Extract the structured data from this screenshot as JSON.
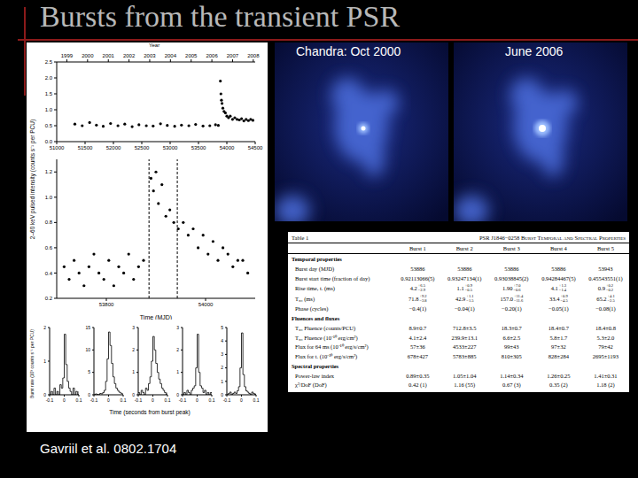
{
  "title": "Bursts from the transient PSR",
  "images": [
    {
      "label": "Chandra: Oct 2000"
    },
    {
      "label": "June 2006"
    }
  ],
  "citation": "Gavriil et al. 0802.1704",
  "chart_data": [
    {
      "type": "scatter",
      "marker": "circle",
      "color": "#000000",
      "y_label": "2–60 keV pulsed intensity (counts s⁻¹ per PCU)",
      "top_axis": {
        "label": "Year",
        "ticks": [
          {
            "value": 51179,
            "label": "1999"
          },
          {
            "value": 51544,
            "label": "2000"
          },
          {
            "value": 51910,
            "label": "2001"
          },
          {
            "value": 52275,
            "label": "2002"
          },
          {
            "value": 52640,
            "label": "2003"
          },
          {
            "value": 53005,
            "label": "2004"
          },
          {
            "value": 53371,
            "label": "2005"
          },
          {
            "value": 53736,
            "label": "2006"
          },
          {
            "value": 54101,
            "label": "2007"
          },
          {
            "value": 54466,
            "label": "2008"
          }
        ]
      },
      "x": [
        51320,
        51450,
        51580,
        51700,
        51820,
        51950,
        52080,
        52200,
        52330,
        52450,
        52580,
        52700,
        52830,
        52950,
        53080,
        53200,
        53330,
        53450,
        53580,
        53700,
        53800,
        53850,
        53886,
        53895,
        53905,
        53915,
        53930,
        53950,
        53975,
        54000,
        54030,
        54060,
        54100,
        54140,
        54180,
        54220,
        54260,
        54300,
        54340,
        54380,
        54420,
        54460
      ],
      "values": [
        0.55,
        0.5,
        0.6,
        0.52,
        0.48,
        0.57,
        0.5,
        0.55,
        0.47,
        0.53,
        0.5,
        0.49,
        0.56,
        0.51,
        0.48,
        0.52,
        0.5,
        0.54,
        0.49,
        0.5,
        0.53,
        0.51,
        1.9,
        1.5,
        1.3,
        1.2,
        1.05,
        0.95,
        0.9,
        0.8,
        0.75,
        0.8,
        0.7,
        0.75,
        0.7,
        0.68,
        0.72,
        0.65,
        0.7,
        0.66,
        0.7,
        0.67
      ],
      "xlim": [
        51000,
        54500
      ],
      "xticks": [
        51000,
        51500,
        52000,
        52500,
        53000,
        53500,
        54000,
        54500
      ],
      "ylim": [
        0,
        2.5
      ],
      "yticks": [
        {
          "value": 0,
          "label": "0.0"
        },
        {
          "value": 0.5,
          "label": "0.5"
        },
        {
          "value": 1,
          "label": "1.0"
        },
        {
          "value": 1.5,
          "label": "1.5"
        },
        {
          "value": 2,
          "label": "2.0"
        },
        {
          "value": 2.5,
          "label": "2.5"
        }
      ]
    },
    {
      "type": "scatter",
      "marker": "circle",
      "color": "#000000",
      "x_label": "Time (MJD)",
      "reference_lines": [
        53886,
        53943
      ],
      "x": [
        53715,
        53725,
        53735,
        53745,
        53755,
        53765,
        53775,
        53785,
        53795,
        53805,
        53815,
        53825,
        53835,
        53845,
        53855,
        53865,
        53875,
        53890,
        53895,
        53900,
        53905,
        53912,
        53920,
        53928,
        53936,
        53945,
        53955,
        53965,
        53975,
        53985,
        53995,
        54005,
        54015,
        54025,
        54035,
        54045,
        54055,
        54065,
        54075,
        54085
      ],
      "values": [
        0.45,
        0.35,
        0.5,
        0.4,
        0.3,
        0.45,
        0.55,
        0.4,
        0.35,
        0.5,
        0.3,
        0.45,
        0.4,
        0.55,
        0.35,
        0.45,
        0.5,
        1.15,
        1.05,
        1.2,
        0.95,
        1.1,
        0.85,
        0.9,
        0.8,
        0.75,
        0.8,
        0.7,
        0.75,
        0.6,
        0.7,
        0.55,
        0.65,
        0.5,
        0.6,
        0.55,
        0.45,
        0.5,
        0.5,
        0.4
      ],
      "xlim": [
        53700,
        54100
      ],
      "xticks": [
        53800,
        54000
      ],
      "ylim": [
        0.2,
        1.3
      ],
      "yticks": [
        0.2,
        0.4,
        0.6,
        0.8,
        {
          "value": 1,
          "label": "1.0"
        },
        1.2
      ]
    },
    {
      "type": "line",
      "line_style": "step",
      "color": "#000000",
      "x_label": "Time (seconds from burst peak)",
      "y_label": "Burst rate (10³ counts s⁻¹ per PCU)",
      "x": [
        -0.1,
        -0.09,
        -0.08,
        -0.07,
        -0.06,
        -0.05,
        -0.04,
        -0.03,
        -0.02,
        -0.01,
        0,
        0.01,
        0.02,
        0.03,
        0.04,
        0.05,
        0.06,
        0.07,
        0.08,
        0.09,
        0.1
      ],
      "xlim": [
        -0.1,
        0.1
      ],
      "xticks": [
        -0.1,
        0,
        0.1
      ],
      "panels": [
        {
          "values": [
            0,
            0.1,
            0,
            0.2,
            0,
            0.1,
            0,
            0.3,
            0.2,
            0.5,
            1.8,
            0.9,
            0.4,
            0.2,
            0.1,
            0,
            0.2,
            0,
            0.1,
            0,
            0.1
          ],
          "ylim": [
            0,
            2
          ],
          "yticks": [
            0,
            1,
            2
          ]
        },
        {
          "values": [
            0,
            0.2,
            0.1,
            0,
            0.3,
            0.2,
            0.5,
            1,
            3,
            8,
            14,
            11,
            7,
            4,
            2.5,
            1.5,
            1,
            0.6,
            0.4,
            0.2,
            0.1
          ],
          "ylim": [
            0,
            15
          ],
          "yticks": [
            0,
            5,
            10,
            15
          ]
        },
        {
          "values": [
            0.1,
            0,
            0.2,
            0.1,
            0,
            0.3,
            0.2,
            0.5,
            0.8,
            1.5,
            2.6,
            2,
            1.4,
            1,
            0.7,
            0.5,
            0.3,
            0.2,
            0.1,
            0,
            0.1
          ],
          "ylim": [
            0,
            3
          ],
          "yticks": [
            0,
            1,
            2,
            3
          ]
        },
        {
          "values": [
            0,
            0.1,
            0,
            0.2,
            0.1,
            0,
            0.2,
            0.3,
            0.4,
            1.2,
            2.7,
            1,
            0.4,
            0.3,
            0.1,
            0.2,
            0,
            0.1,
            0,
            0.1,
            0
          ],
          "ylim": [
            0,
            3
          ],
          "yticks": [
            0,
            1,
            2,
            3
          ]
        },
        {
          "values": [
            0,
            0.1,
            0.2,
            0,
            0.1,
            0.2,
            0.1,
            0.3,
            0.6,
            2,
            4.6,
            1.5,
            0.6,
            0.3,
            0.2,
            0.1,
            0,
            0.2,
            0.1,
            0,
            0.1
          ],
          "ylim": [
            0,
            5
          ],
          "yticks": [
            0,
            1,
            2,
            3,
            4,
            5
          ]
        }
      ]
    }
  ],
  "table": {
    "caption": "Table 1",
    "title": "PSR J1846−0258 Burst Temporal and Spectral Properties",
    "columns": [
      "Burst 1",
      "Burst 2",
      "Burst 3",
      "Burst 4",
      "Burst 5"
    ],
    "rows": [
      {
        "section": "Temporal properties"
      },
      {
        "label": "Burst day (MJD)",
        "cells": [
          "53886",
          "53886",
          "53886",
          "53886",
          "53943"
        ]
      },
      {
        "label": "Burst start time (fraction of day)",
        "cells": [
          "0.92113066(5)",
          "0.93247134(1)",
          "0.93038845(2)",
          "0.94284467(5)",
          "0.45543551(1)"
        ]
      },
      {
        "label": "Rise time, tᵣ (ms)",
        "cells": [
          {
            "v": "4.2",
            "up": "+6.5",
            "lo": "−2.9"
          },
          {
            "v": "1.1",
            "up": "+0.9",
            "lo": "−0.5"
          },
          {
            "v": "1.90",
            "up": "+7.0",
            "lo": "−0.6"
          },
          {
            "v": "4.1",
            "up": "+1.3",
            "lo": "−1.4"
          },
          {
            "v": "0.9",
            "up": "+0.2",
            "lo": "−0.2"
          }
        ]
      },
      {
        "label": "T₉₀ (ms)",
        "cells": [
          {
            "v": "71.8",
            "up": "+9.2",
            "lo": "−3.8"
          },
          {
            "v": "42.9",
            "up": "+1.1",
            "lo": "−1.5"
          },
          {
            "v": "157.0",
            "up": "+11.4",
            "lo": "−11.6"
          },
          {
            "v": "33.4",
            "up": "+0.9",
            "lo": "−4.5"
          },
          {
            "v": "65.2",
            "up": "+4.1",
            "lo": "−2.5"
          }
        ]
      },
      {
        "label": "Phase (cycles)",
        "cells": [
          "−0.4(1)",
          "−0.04(1)",
          "−0.20(1)",
          "−0.05(1)",
          "−0.08(1)"
        ]
      },
      {
        "section": "Fluences and fluxes"
      },
      {
        "label": "T₉₀ Fluence (counts/PCU)",
        "cells": [
          "8.9±0.7",
          "712.8±3.5",
          "18.3±0.7",
          "18.4±0.7",
          "18.4±0.8"
        ]
      },
      {
        "label": "T₉₀ Fluence (10⁻¹⁰ erg/cm²)",
        "cells": [
          "4.1±2.4",
          "239.9±13.1",
          "6.6±2.5",
          "5.8±1.7",
          "5.3±2.0"
        ]
      },
      {
        "label": "Flux for 64 ms (10⁻¹⁰ erg/s/cm²)",
        "cells": [
          "57±36",
          "4533±227",
          "99±43",
          "97±32",
          "79±42"
        ]
      },
      {
        "label": "Flux for tᵣ (10⁻¹⁰ erg/s/cm²)",
        "cells": [
          "678±427",
          "5783±885",
          "810±305",
          "828±284",
          "2695±1193"
        ]
      },
      {
        "section": "Spectral properties"
      },
      {
        "label": "Power-law index",
        "cells": [
          "0.89±0.35",
          "1.05±1.04",
          "1.14±0.34",
          "1.26±0.25",
          "1.41±0.31"
        ]
      },
      {
        "label": "χ²/DoF (DoF)",
        "cells": [
          "0.42 (1)",
          "1.16 (55)",
          "0.67 (3)",
          "0.35 (2)",
          "1.18 (2)"
        ]
      }
    ]
  }
}
